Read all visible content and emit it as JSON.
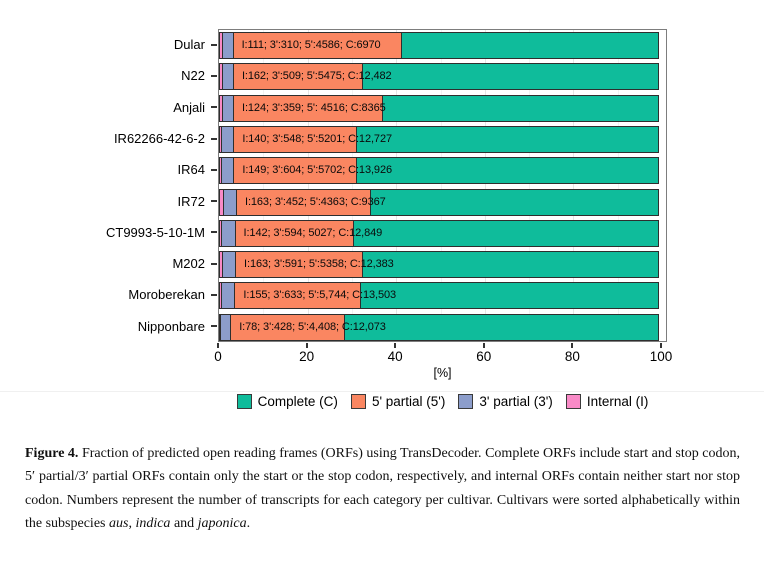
{
  "chart_data": {
    "type": "bar",
    "orientation": "horizontal",
    "stacked": true,
    "normalized_to_percent": true,
    "title": "",
    "xlabel": "[%]",
    "ylabel": "",
    "xlim": [
      0,
      100
    ],
    "xticks": [
      0,
      20,
      40,
      60,
      80,
      100
    ],
    "grid": true,
    "legend_position": "bottom",
    "categories": [
      "Dular",
      "N22",
      "Anjali",
      "IR62266-42-6-2",
      "IR64",
      "IR72",
      "CT9993-5-10-1M",
      "M202",
      "Moroberekan",
      "Nipponbare"
    ],
    "series": [
      {
        "name": "Internal (I)",
        "color": "#f98ac7",
        "values": [
          111,
          162,
          124,
          140,
          149,
          163,
          142,
          163,
          155,
          78
        ]
      },
      {
        "name": "3' partial (3')",
        "color": "#8c9dcb",
        "values": [
          310,
          509,
          359,
          548,
          604,
          452,
          594,
          591,
          633,
          428
        ]
      },
      {
        "name": "5' partial (5')",
        "color": "#fa8661",
        "values": [
          4586,
          5475,
          4516,
          5201,
          5702,
          4363,
          5027,
          5358,
          5744,
          4408
        ]
      },
      {
        "name": "Complete (C)",
        "color": "#0fbc9b",
        "values": [
          6970,
          12482,
          8365,
          12727,
          13926,
          9367,
          12849,
          12383,
          13503,
          12073
        ]
      }
    ],
    "bar_labels": [
      "I:111; 3':310; 5':4586; C:6970",
      "I:162; 3':509; 5':5475; C:12,482",
      "I:124; 3':359; 5': 4516; C:8365",
      "I:140; 3':548; 5':5201; C:12,727",
      "I:149; 3':604; 5':5702; C:13,926",
      "I:163; 3':452; 5':4363; C:9367",
      "I:142; 3':594; 5027; C:12,849",
      "I:163; 3':591; 5':5358; C:12,383",
      "I:155; 3':633; 5':5,744; C:13,503",
      "I:78; 3':428; 5':4,408; C:12,073"
    ],
    "legend": [
      {
        "label": "Complete (C)",
        "color": "#0fbc9b"
      },
      {
        "label": "5' partial (5')",
        "color": "#fa8661"
      },
      {
        "label": "3' partial (3')",
        "color": "#8c9dcb"
      },
      {
        "label": "Internal (I)",
        "color": "#f98ac7"
      }
    ]
  },
  "caption": {
    "runs": [
      {
        "text": "Figure 4.",
        "style": "bold"
      },
      {
        "text": " Fraction of predicted open reading frames (ORFs) using TransDecoder. Complete ORFs include start and stop codon, 5′ partial/3′ partial ORFs contain only the start or the stop codon, respectively, and internal ORFs contain neither start nor stop codon. Numbers represent the number of transcripts for each category per cultivar. Cultivars were sorted alphabetically within the subspecies ",
        "style": "normal"
      },
      {
        "text": "aus",
        "style": "italic"
      },
      {
        "text": ", ",
        "style": "normal"
      },
      {
        "text": "indica",
        "style": "italic"
      },
      {
        "text": " and ",
        "style": "normal"
      },
      {
        "text": "japonica",
        "style": "italic"
      },
      {
        "text": ".",
        "style": "normal"
      }
    ]
  },
  "colors": {
    "complete": "#0fbc9b",
    "partial5": "#fa8661",
    "partial3": "#8c9dcb",
    "internal": "#f98ac7",
    "segment_border": "#2e2e2e",
    "panel_border": "#7d7d7d"
  }
}
